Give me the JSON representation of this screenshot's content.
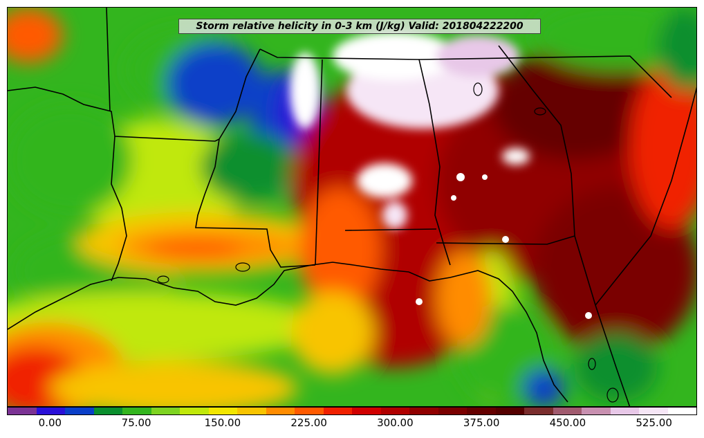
{
  "title": "Storm relative helicity in 0-3 km (J/kg) Valid: 201804222200",
  "colorbar": {
    "min": -37.5,
    "max": 562.5,
    "tick_labels": [
      "0.00",
      "75.00",
      "150.00",
      "225.00",
      "300.00",
      "375.00",
      "450.00",
      "525.00"
    ],
    "tick_values": [
      0,
      75,
      150,
      225,
      300,
      375,
      450,
      525
    ],
    "colors": [
      "#7b3294",
      "#2a10d8",
      "#0a3fc8",
      "#0a8f2e",
      "#33b51e",
      "#7ed321",
      "#c0e80a",
      "#f2e600",
      "#f8c400",
      "#ff8c00",
      "#ff5a00",
      "#f02000",
      "#d00000",
      "#b00000",
      "#900000",
      "#7a0000",
      "#650000",
      "#550000",
      "#7a2d2d",
      "#a05a6e",
      "#c890b0",
      "#e8c8e8",
      "#f6e6f6",
      "#ffffff"
    ]
  }
}
